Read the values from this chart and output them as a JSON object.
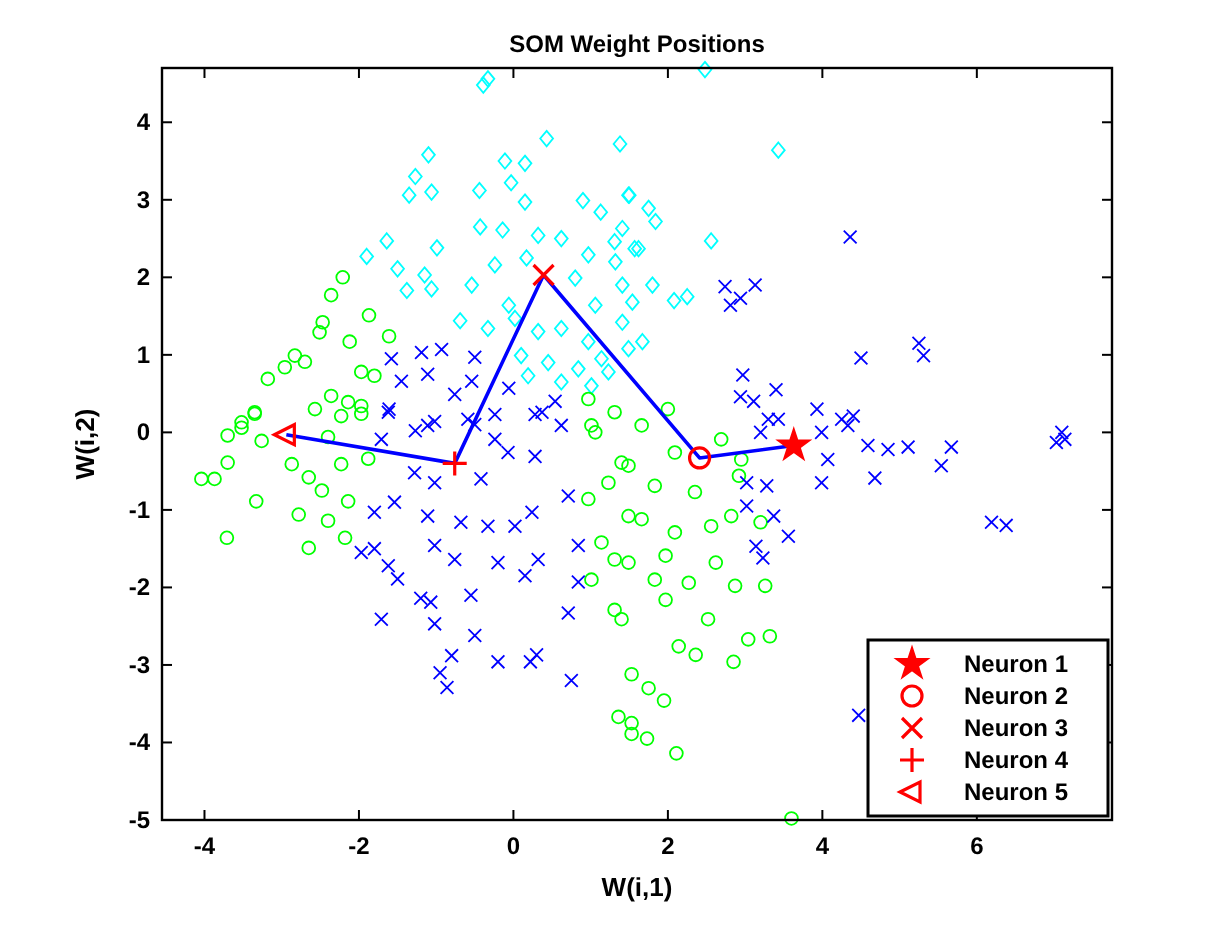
{
  "chart_data": {
    "type": "scatter",
    "title": "SOM Weight Positions",
    "xlabel": "W(i,1)",
    "ylabel": "W(i,2)",
    "xlim": [
      -4.55,
      7.75
    ],
    "ylim": [
      -5,
      4.7
    ],
    "xticks": [
      -4,
      -2,
      0,
      2,
      4,
      6
    ],
    "yticks": [
      -5,
      -4,
      -3,
      -2,
      -1,
      0,
      1,
      2,
      3,
      4
    ],
    "grid": false,
    "legend": "bottom right",
    "series": [
      {
        "type": "scatter",
        "marker": "diamond",
        "color": "#00ffff",
        "x": [
          -0.39,
          -0.33,
          0.43,
          1.38,
          -1.1,
          -1.27,
          -1.35,
          -1.06,
          -0.11,
          0.15,
          -0.03,
          0.15,
          -0.44,
          0.9,
          1.13,
          1.49,
          -0.43,
          -0.14,
          0.32,
          0.62,
          -1.64,
          -1.9,
          -0.99,
          -1.5,
          -1.15,
          -0.24,
          0.17,
          0.97,
          1.31,
          1.57,
          -1.38,
          -1.06,
          -0.54,
          -0.06,
          0.8,
          1.06,
          1.41,
          -0.69,
          -0.33,
          0.02,
          0.32,
          0.62,
          0.97,
          0.1,
          0.45,
          0.84,
          0.62,
          0.19,
          1.14,
          1.49,
          1.01,
          2.48,
          3.43,
          1.5,
          1.75,
          1.84,
          1.41,
          1.62,
          2.56,
          1.32,
          1.54,
          1.8,
          2.08,
          2.25,
          1.41,
          1.67,
          1.23
        ],
        "values": [
          4.48,
          4.56,
          3.79,
          3.72,
          3.58,
          3.3,
          3.06,
          3.1,
          3.5,
          3.47,
          3.22,
          2.97,
          3.12,
          2.99,
          2.84,
          3.06,
          2.65,
          2.61,
          2.54,
          2.5,
          2.47,
          2.27,
          2.38,
          2.11,
          2.03,
          2.16,
          2.25,
          2.29,
          2.46,
          2.37,
          1.83,
          1.85,
          1.9,
          1.64,
          1.99,
          1.64,
          1.9,
          1.44,
          1.34,
          1.47,
          1.3,
          1.34,
          1.17,
          0.99,
          0.9,
          0.82,
          0.65,
          0.73,
          0.95,
          1.08,
          0.6,
          4.68,
          3.64,
          3.06,
          2.89,
          2.72,
          2.63,
          2.37,
          2.47,
          2.2,
          1.68,
          1.9,
          1.7,
          1.75,
          1.42,
          1.17,
          0.78
        ]
      },
      {
        "type": "scatter",
        "marker": "circle",
        "color": "#00ff00",
        "x": [
          -2.21,
          -2.36,
          -1.87,
          -2.47,
          -2.51,
          -2.12,
          -1.61,
          -2.83,
          -2.7,
          -2.96,
          -3.18,
          -1.97,
          -1.8,
          -2.36,
          -2.14,
          -1.97,
          -2.57,
          -3.35,
          -3.52,
          -2.23,
          -3.7,
          0.97,
          1.31,
          1.06,
          -3.7,
          -3.87,
          -4.04,
          -3.52,
          -3.26,
          -3.35,
          -2.87,
          -2.65,
          -2.48,
          -2.78,
          -3.33,
          -3.71,
          -2.4,
          -2.65,
          -2.18,
          -2.14,
          -2.23,
          -1.88,
          -2.4,
          -1.97,
          1.01,
          1.4,
          1.23,
          0.97,
          1.49,
          1.14,
          1.31,
          1.01,
          1.31,
          1.53,
          1.36,
          1.53,
          2.0,
          1.66,
          2.09,
          2.69,
          2.95,
          1.49,
          1.83,
          2.35,
          2.92,
          1.66,
          2.09,
          2.56,
          2.82,
          3.2,
          1.49,
          1.97,
          2.62,
          2.27,
          1.83,
          2.87,
          3.26,
          1.4,
          1.97,
          2.52,
          3.04,
          3.32,
          2.14,
          2.36,
          2.85,
          1.75,
          1.95,
          1.53,
          1.73,
          2.11,
          3.6
        ],
        "values": [
          2.0,
          1.77,
          1.51,
          1.42,
          1.29,
          1.17,
          1.24,
          0.99,
          0.91,
          0.84,
          0.69,
          0.78,
          0.73,
          0.47,
          0.39,
          0.34,
          0.3,
          0.26,
          0.13,
          0.21,
          -0.04,
          0.43,
          0.26,
          0.0,
          -0.39,
          -0.6,
          -0.6,
          0.06,
          -0.11,
          0.24,
          -0.41,
          -0.58,
          -0.75,
          -1.06,
          -0.89,
          -1.36,
          -1.14,
          -1.49,
          -1.36,
          -0.89,
          -0.41,
          -0.34,
          -0.06,
          0.24,
          0.09,
          -0.39,
          -0.65,
          -0.86,
          -1.08,
          -1.42,
          -1.64,
          -1.9,
          -2.29,
          -3.12,
          -3.67,
          -3.75,
          0.3,
          0.09,
          -0.26,
          -0.09,
          -0.35,
          -0.43,
          -0.69,
          -0.77,
          -0.56,
          -1.12,
          -1.29,
          -1.21,
          -1.08,
          -1.16,
          -1.68,
          -1.59,
          -1.68,
          -1.94,
          -1.9,
          -1.98,
          -1.98,
          -2.41,
          -2.16,
          -2.41,
          -2.67,
          -2.63,
          -2.76,
          -2.87,
          -2.96,
          -3.3,
          -3.46,
          -3.89,
          -3.95,
          -4.14,
          -4.98
        ]
      },
      {
        "type": "scatter",
        "marker": "cross",
        "color": "#0000ff",
        "x": [
          -1.58,
          -1.19,
          -0.93,
          -0.5,
          -1.45,
          -1.11,
          -0.76,
          -0.54,
          -0.06,
          0.28,
          0.54,
          -0.24,
          -0.5,
          -1.27,
          -1.02,
          -1.61,
          -1.71,
          -1.62,
          -1.11,
          -0.59,
          -0.24,
          -0.07,
          0.28,
          0.62,
          0.37,
          -1.28,
          -1.02,
          -0.42,
          -1.8,
          -1.54,
          -1.11,
          -0.68,
          -0.33,
          0.02,
          0.24,
          0.71,
          -1.97,
          -1.8,
          -1.62,
          -1.5,
          -1.02,
          -0.76,
          -0.2,
          0.15,
          0.32,
          0.84,
          0.84,
          -1.71,
          -1.2,
          -1.07,
          -1.02,
          -0.55,
          -0.5,
          -0.8,
          -0.95,
          -0.86,
          -0.2,
          0.22,
          0.3,
          0.71,
          0.75,
          2.74,
          3.13,
          2.94,
          2.81,
          4.36,
          5.25,
          5.31,
          4.5,
          2.97,
          2.94,
          3.11,
          3.4,
          3.43,
          3.2,
          3.93,
          4.25,
          4.4,
          7.1,
          7.14,
          3.3,
          3.99,
          4.33,
          4.59,
          4.85,
          5.11,
          5.67,
          5.54,
          4.07,
          3.99,
          4.68,
          3.02,
          3.28,
          3.02,
          3.37,
          3.56,
          3.14,
          3.23,
          6.19,
          6.38,
          4.47,
          7.03
        ],
        "values": [
          0.95,
          1.03,
          1.07,
          0.97,
          0.66,
          0.75,
          0.49,
          0.66,
          0.57,
          0.23,
          0.4,
          0.23,
          0.1,
          0.02,
          0.14,
          0.3,
          -0.09,
          0.26,
          0.09,
          0.17,
          -0.09,
          -0.26,
          -0.31,
          0.09,
          0.26,
          -0.52,
          -0.65,
          -0.6,
          -1.03,
          -0.9,
          -1.08,
          -1.16,
          -1.21,
          -1.21,
          -1.03,
          -0.82,
          -1.55,
          -1.5,
          -1.72,
          -1.89,
          -1.46,
          -1.64,
          -1.68,
          -1.85,
          -1.64,
          -1.46,
          -1.93,
          -2.41,
          -2.14,
          -2.19,
          -2.47,
          -2.1,
          -2.62,
          -2.88,
          -3.1,
          -3.29,
          -2.96,
          -2.96,
          -2.87,
          -2.33,
          -3.2,
          1.88,
          1.9,
          1.73,
          1.64,
          2.52,
          1.15,
          0.99,
          0.96,
          0.74,
          0.46,
          0.4,
          0.55,
          0.17,
          0.0,
          0.3,
          0.17,
          0.21,
          0.0,
          -0.09,
          0.17,
          0.0,
          0.09,
          -0.17,
          -0.22,
          -0.19,
          -0.19,
          -0.43,
          -0.35,
          -0.65,
          -0.59,
          -0.65,
          -0.69,
          -0.95,
          -1.08,
          -1.34,
          -1.47,
          -1.62,
          -1.16,
          -1.2,
          -3.65,
          -0.13
        ]
      },
      {
        "type": "line",
        "marker": "none",
        "color": "#0000ff",
        "x": [
          -2.94,
          -0.76,
          0.39,
          2.41,
          3.63
        ],
        "values": [
          -0.03,
          -0.4,
          2.03,
          -0.33,
          -0.17
        ]
      },
      {
        "type": "scatter",
        "name": "Neuron 1",
        "marker": "star",
        "color": "#ff0000",
        "x": [
          3.63
        ],
        "values": [
          -0.17
        ]
      },
      {
        "type": "scatter",
        "name": "Neuron 2",
        "marker": "circle",
        "color": "#ff0000",
        "x": [
          2.41
        ],
        "values": [
          -0.33
        ]
      },
      {
        "type": "scatter",
        "name": "Neuron 3",
        "marker": "cross",
        "color": "#ff0000",
        "x": [
          0.39
        ],
        "values": [
          2.03
        ]
      },
      {
        "type": "scatter",
        "name": "Neuron 4",
        "marker": "plus",
        "color": "#ff0000",
        "x": [
          -0.76
        ],
        "values": [
          -0.4
        ]
      },
      {
        "type": "scatter",
        "name": "Neuron 5",
        "marker": "triangle-left",
        "color": "#ff0000",
        "x": [
          -2.94
        ],
        "values": [
          -0.03
        ]
      }
    ]
  }
}
